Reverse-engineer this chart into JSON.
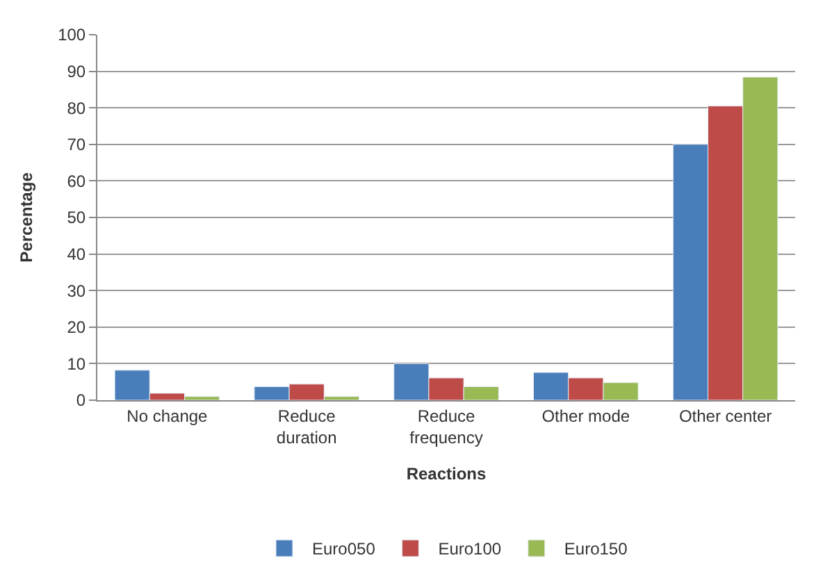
{
  "chart_data": {
    "type": "bar",
    "xlabel": "Reactions",
    "ylabel": "Percentage",
    "categories": [
      "No change",
      "Reduce duration",
      "Reduce frequency",
      "Other mode",
      "Other center"
    ],
    "series": [
      {
        "name": "Euro050",
        "color": "#4a7ebb",
        "values": [
          8.2,
          3.7,
          10,
          7.6,
          70
        ]
      },
      {
        "name": "Euro100",
        "color": "#be4b48",
        "values": [
          1.9,
          4.4,
          6.1,
          6.1,
          80.5
        ]
      },
      {
        "name": "Euro150",
        "color": "#98b954",
        "values": [
          1,
          1,
          3.7,
          4.8,
          88.4
        ]
      }
    ],
    "ylim": [
      0,
      100
    ],
    "yticks": [
      0,
      10,
      20,
      30,
      40,
      50,
      60,
      70,
      80,
      90,
      100
    ],
    "grid": "y",
    "legend": "bottom"
  }
}
